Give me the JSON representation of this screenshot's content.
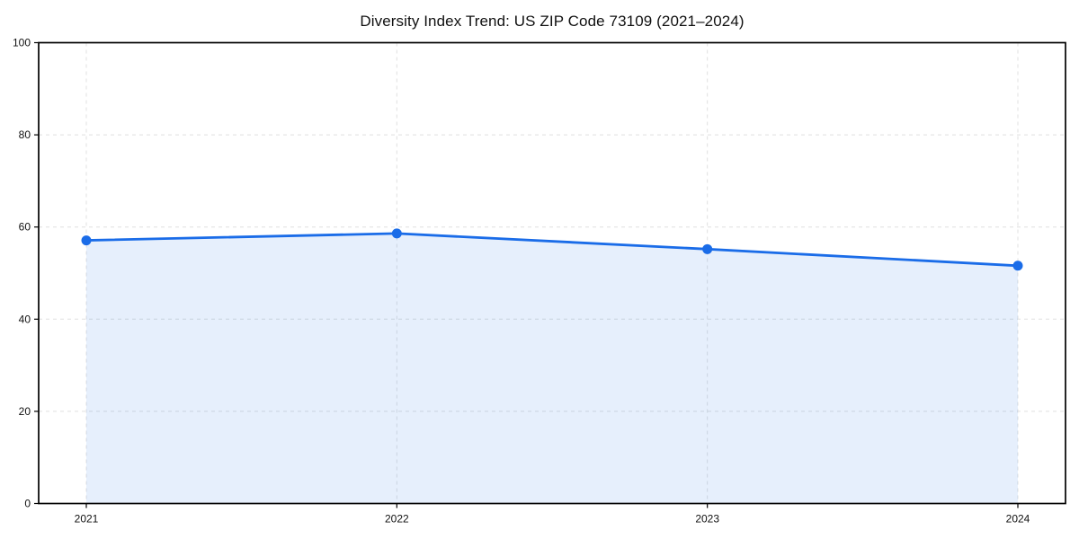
{
  "chart_data": {
    "type": "area",
    "title": "Diversity Index Trend: US ZIP Code 73109 (2021–2024)",
    "categories": [
      "2021",
      "2022",
      "2023",
      "2024"
    ],
    "series": [
      {
        "name": "Diversity Index",
        "values": [
          57.1,
          58.6,
          55.2,
          51.6
        ]
      }
    ],
    "xlabel": "",
    "ylabel": "",
    "ylim": [
      0,
      100
    ],
    "yticks": [
      0,
      20,
      40,
      60,
      80,
      100
    ],
    "grid": true,
    "grid_style": "dashed",
    "legend_position": "none",
    "marker": "circle",
    "colors": {
      "line": "#1a6ce8",
      "marker": "#1a6ce8",
      "fill": "#1a6ce8",
      "grid": "#e0e0e0",
      "axis_frame": "#000000",
      "tick_text": "#111111",
      "background": "#ffffff"
    },
    "fill_opacity": 0.11
  }
}
